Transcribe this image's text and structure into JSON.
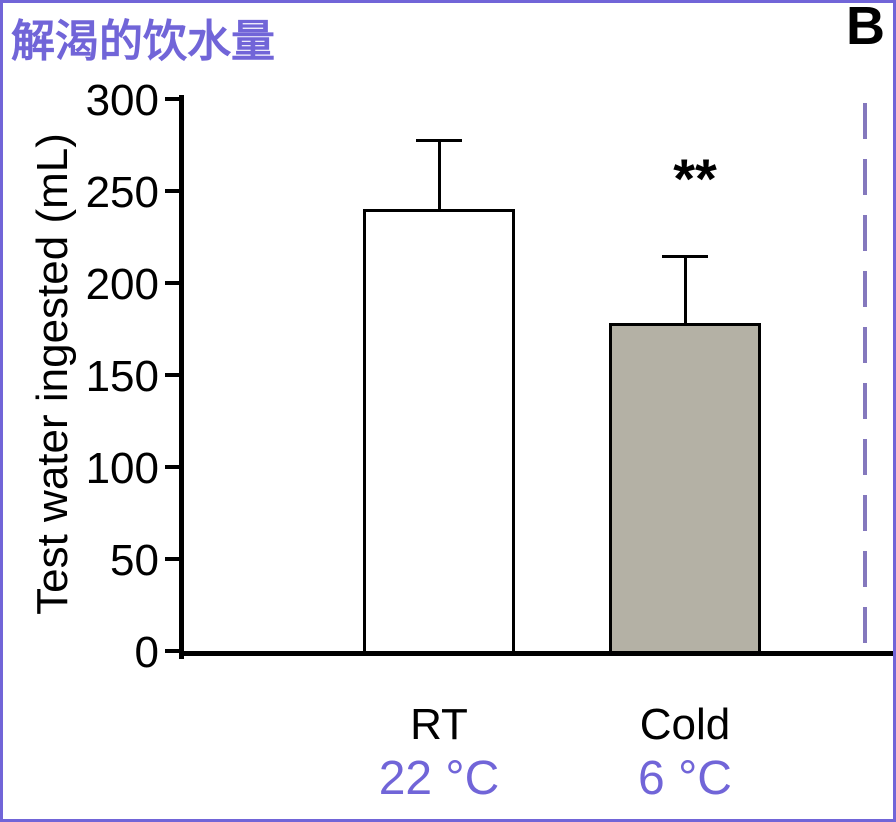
{
  "figure": {
    "title": "解渴的饮水量",
    "panel_label": "B",
    "accent_color": "#7165d8",
    "border_color": "#7165d8"
  },
  "chart_data": {
    "type": "bar",
    "title": "解渴的饮水量",
    "ylabel": "Test water ingested (mL)",
    "ylim": [
      0,
      300
    ],
    "yticks": [
      0,
      50,
      100,
      150,
      200,
      250,
      300
    ],
    "categories": [
      "RT",
      "Cold"
    ],
    "category_sublabels": [
      "22 °C",
      "6 °C"
    ],
    "values": [
      240,
      178
    ],
    "error_plus": [
      37,
      36
    ],
    "bar_colors": [
      "#ffffff",
      "#b4b1a5"
    ],
    "bar_border_color": "#000000",
    "significance": {
      "category": "Cold",
      "label": "**"
    },
    "grid": false,
    "legend": "none",
    "panel_divider": {
      "style": "dashed",
      "color": "#8478bd"
    }
  }
}
